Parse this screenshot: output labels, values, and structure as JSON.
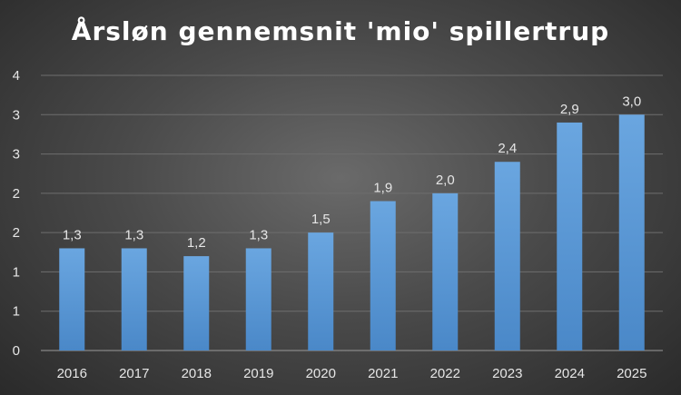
{
  "chart_data": {
    "type": "bar",
    "title": "Årsløn gennemsnit 'mio' spillertrup",
    "categories": [
      "2016",
      "2017",
      "2018",
      "2019",
      "2020",
      "2021",
      "2022",
      "2023",
      "2024",
      "2025"
    ],
    "values": [
      1.3,
      1.3,
      1.2,
      1.3,
      1.5,
      1.9,
      2.0,
      2.4,
      2.9,
      3.0
    ],
    "data_labels": [
      "1,3",
      "1,3",
      "1,2",
      "1,3",
      "1,5",
      "1,9",
      "2,0",
      "2,4",
      "2,9",
      "3,0"
    ],
    "y_tick_labels": [
      "0",
      "1",
      "1",
      "2",
      "2",
      "3",
      "3",
      "4"
    ],
    "ylim": [
      0,
      3.5
    ],
    "y_tick_step": 0.5,
    "grid": true,
    "bar_color": "#5b9bd5",
    "xlabel": "",
    "ylabel": ""
  }
}
